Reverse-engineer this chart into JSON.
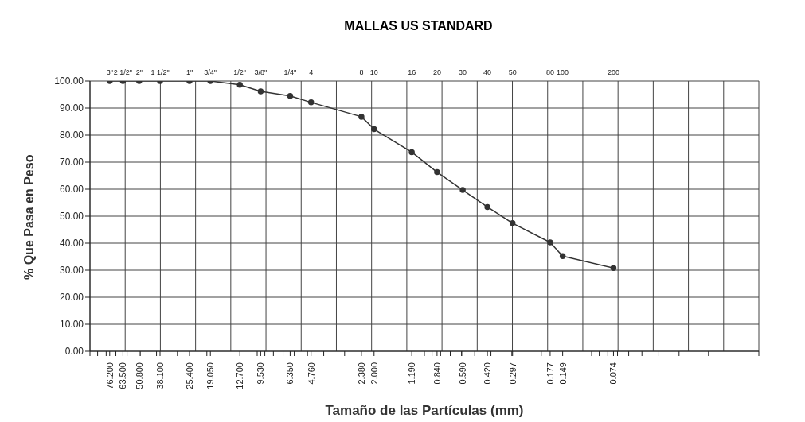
{
  "chart_data": {
    "type": "line",
    "title": "MALLAS US STANDARD",
    "xlabel": "Tamaño de las Partículas (mm)",
    "ylabel": "% Que Pasa en Peso",
    "x": [
      76.2,
      63.5,
      50.8,
      38.1,
      25.4,
      19.05,
      12.7,
      9.53,
      6.35,
      4.76,
      2.38,
      2.0,
      1.19,
      0.84,
      0.59,
      0.42,
      0.297,
      0.177,
      0.149,
      0.074
    ],
    "values": [
      100,
      100,
      100,
      100,
      100,
      100,
      98.6,
      96.2,
      94.5,
      92.1,
      86.8,
      82.2,
      73.7,
      66.3,
      59.7,
      53.4,
      47.4,
      40.3,
      35.2,
      30.8
    ],
    "color": "#333333",
    "marker": "circle",
    "line_style": "solid",
    "log": "x",
    "grid": true,
    "xlim": [
      100,
      0.01
    ],
    "ylim": [
      0,
      100
    ],
    "xticks": [
      {
        "value": 100,
        "label": null
      },
      {
        "value": 90,
        "label": null
      },
      {
        "value": 80,
        "label": null
      },
      {
        "value": 70,
        "label": null
      },
      {
        "value": 60,
        "label": null
      },
      {
        "value": 50,
        "label": null
      },
      {
        "value": 40,
        "label": null
      },
      {
        "value": 30,
        "label": null
      },
      {
        "value": 20,
        "label": null
      },
      {
        "value": 10,
        "label": null
      },
      {
        "value": 9,
        "label": null
      },
      {
        "value": 8,
        "label": null
      },
      {
        "value": 7,
        "label": null
      },
      {
        "value": 6,
        "label": null
      },
      {
        "value": 5,
        "label": null
      },
      {
        "value": 4,
        "label": null
      },
      {
        "value": 3,
        "label": null
      },
      {
        "value": 1,
        "label": null
      },
      {
        "value": 0.9,
        "label": null
      },
      {
        "value": 0.8,
        "label": null
      },
      {
        "value": 0.7,
        "label": null
      },
      {
        "value": 0.6,
        "label": null
      },
      {
        "value": 0.5,
        "label": null
      },
      {
        "value": 0.4,
        "label": null
      },
      {
        "value": 0.3,
        "label": null
      },
      {
        "value": 0.2,
        "label": null
      },
      {
        "value": 0.1,
        "label": null
      },
      {
        "value": 0.09,
        "label": null
      },
      {
        "value": 0.08,
        "label": null
      },
      {
        "value": 0.07,
        "label": null
      },
      {
        "value": 0.06,
        "label": null
      },
      {
        "value": 0.05,
        "label": null
      },
      {
        "value": 0.04,
        "label": null
      },
      {
        "value": 0.03,
        "label": null
      },
      {
        "value": 0.02,
        "label": null
      },
      {
        "value": 0.01,
        "label": null
      },
      {
        "value": 76.2,
        "label": "76.200"
      },
      {
        "value": 63.5,
        "label": "63.500"
      },
      {
        "value": 50.8,
        "label": "50.800"
      },
      {
        "value": 38.1,
        "label": "38.100"
      },
      {
        "value": 25.4,
        "label": "25.400"
      },
      {
        "value": 19.05,
        "label": "19.050"
      },
      {
        "value": 12.7,
        "label": "12.700"
      },
      {
        "value": 9.53,
        "label": "9.530"
      },
      {
        "value": 6.35,
        "label": "6.350"
      },
      {
        "value": 4.76,
        "label": "4.760"
      },
      {
        "value": 2.38,
        "label": "2.380"
      },
      {
        "value": 2.0,
        "label": "2.000"
      },
      {
        "value": 1.19,
        "label": "1.190"
      },
      {
        "value": 0.84,
        "label": "0.840"
      },
      {
        "value": 0.59,
        "label": "0.590"
      },
      {
        "value": 0.42,
        "label": "0.420"
      },
      {
        "value": 0.297,
        "label": "0.297"
      },
      {
        "value": 0.177,
        "label": "0.177"
      },
      {
        "value": 0.149,
        "label": "0.149"
      },
      {
        "value": 0.074,
        "label": "0.074"
      }
    ],
    "annotations": [
      "3\"",
      "2 1/2\"",
      "2\"",
      "1 1/2\"",
      "1\"",
      "3/4\"",
      "1/2\"",
      "3/8\"",
      "1/4\"",
      "4",
      "8",
      "10",
      "16",
      "20",
      "30",
      "40",
      "50",
      "80",
      "100",
      "200"
    ],
    "yticks": [
      {
        "value": 0,
        "label": "0.00"
      },
      {
        "value": 10,
        "label": "10.00"
      },
      {
        "value": 20,
        "label": "20.00"
      },
      {
        "value": 30,
        "label": "30.00"
      },
      {
        "value": 40,
        "label": "40.00"
      },
      {
        "value": 50,
        "label": "50.00"
      },
      {
        "value": 60,
        "label": "60.00"
      },
      {
        "value": 70,
        "label": "70.00"
      },
      {
        "value": 80,
        "label": "80.00"
      },
      {
        "value": 90,
        "label": "90.00"
      },
      {
        "value": 100,
        "label": "100.00"
      }
    ]
  }
}
